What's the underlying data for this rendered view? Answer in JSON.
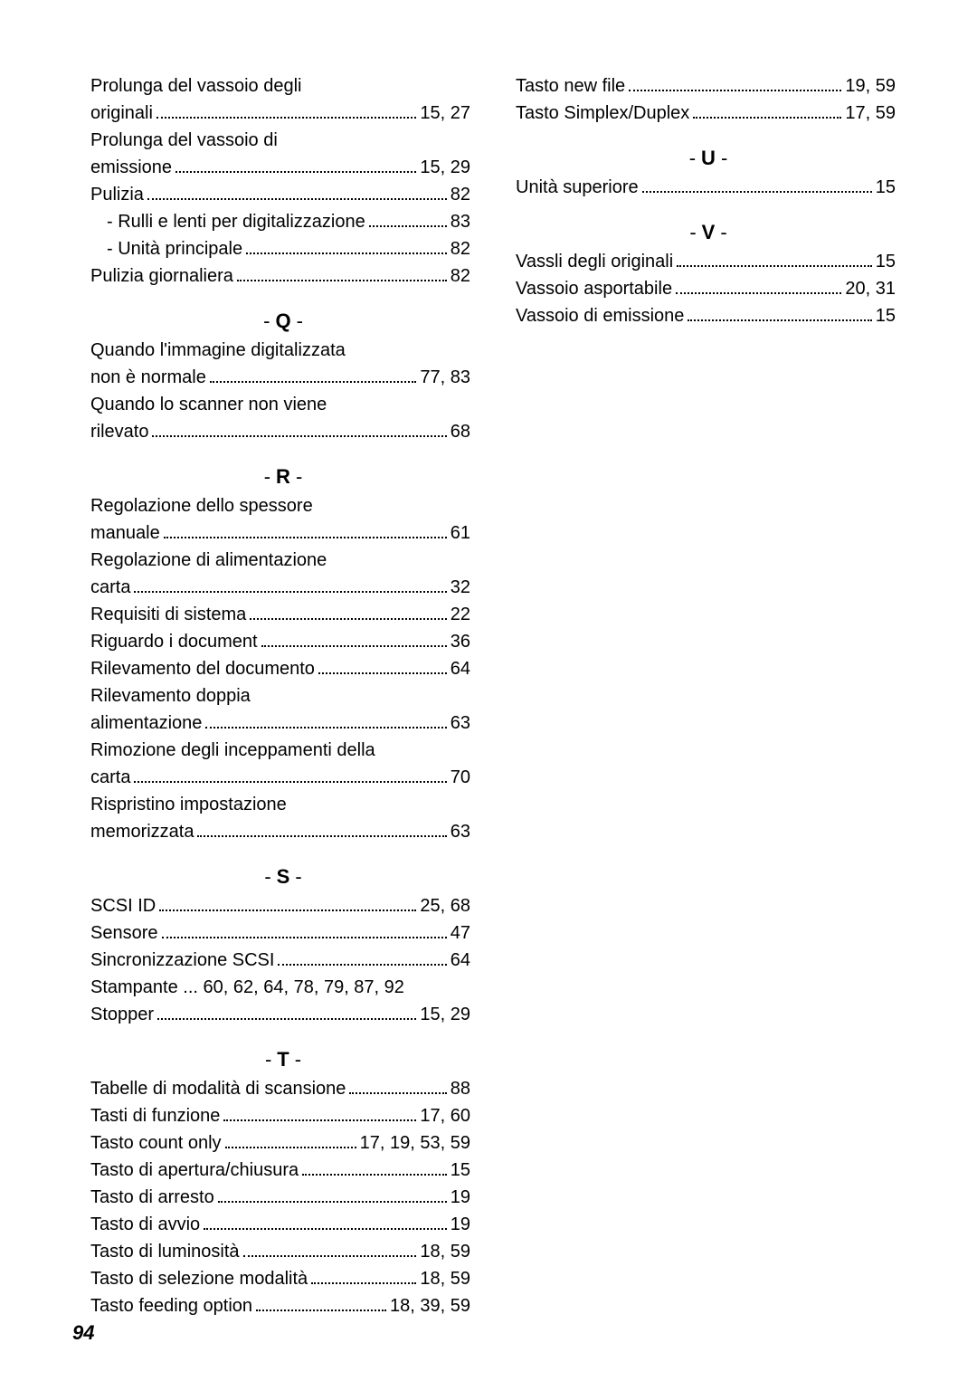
{
  "pageNumber": "94",
  "leftColumn": {
    "initialEntries": [
      {
        "label": "Prolunga del vassoio degli",
        "continuation": true
      },
      {
        "label": "originali",
        "page": "15, 27"
      },
      {
        "label": "Prolunga del vassoio di",
        "continuation": true
      },
      {
        "label": "emissione",
        "page": "15, 29"
      },
      {
        "label": "Pulizia",
        "page": "82"
      },
      {
        "label": "- Rulli e lenti per digitalizzazione",
        "page": "83",
        "indent": true,
        "shortDots": true
      },
      {
        "label": "- Unità principale",
        "page": "82",
        "indent": true
      },
      {
        "label": "Pulizia giornaliera",
        "page": "82"
      }
    ],
    "sections": [
      {
        "letter": "Q",
        "entries": [
          {
            "label": "Quando l'immagine digitalizzata",
            "continuation": true
          },
          {
            "label": "non è normale",
            "page": "77, 83"
          },
          {
            "label": "Quando lo scanner non viene",
            "continuation": true
          },
          {
            "label": "rilevato",
            "page": "68"
          }
        ]
      },
      {
        "letter": "R",
        "entries": [
          {
            "label": "Regolazione dello spessore",
            "continuation": true
          },
          {
            "label": "manuale",
            "page": "61"
          },
          {
            "label": "Regolazione di alimentazione",
            "continuation": true
          },
          {
            "label": "carta",
            "page": "32"
          },
          {
            "label": "Requisiti di sistema",
            "page": "22"
          },
          {
            "label": "Riguardo i document",
            "page": "36"
          },
          {
            "label": "Rilevamento del documento",
            "page": "64"
          },
          {
            "label": "Rilevamento doppia",
            "continuation": true
          },
          {
            "label": "alimentazione",
            "page": "63"
          },
          {
            "label": "Rimozione degli inceppamenti della",
            "continuation": true
          },
          {
            "label": "carta",
            "page": "70"
          },
          {
            "label": "Rispristino impostazione",
            "continuation": true
          },
          {
            "label": "memorizzata",
            "page": "63"
          }
        ]
      },
      {
        "letter": "S",
        "entries": [
          {
            "label": "SCSI ID",
            "page": "25, 68"
          },
          {
            "label": "Sensore",
            "page": "47"
          },
          {
            "label": "Sincronizzazione SCSI",
            "page": "64"
          },
          {
            "label": "Stampante ... 60, 62, 64, 78, 79, 87, 92",
            "noDots": true
          },
          {
            "label": "Stopper",
            "page": "15, 29"
          }
        ]
      },
      {
        "letter": "T",
        "entries": [
          {
            "label": "Tabelle di modalità di scansione",
            "page": "88"
          },
          {
            "label": "Tasti di funzione",
            "page": "17, 60"
          },
          {
            "label": "Tasto count only",
            "page": "17, 19, 53, 59"
          },
          {
            "label": "Tasto di apertura/chiusura",
            "page": "15"
          },
          {
            "label": "Tasto di arresto",
            "page": "19"
          },
          {
            "label": "Tasto di avvio",
            "page": "19"
          },
          {
            "label": "Tasto di luminosità",
            "page": "18, 59"
          },
          {
            "label": "Tasto di selezione modalità",
            "page": "18, 59"
          },
          {
            "label": "Tasto feeding option",
            "page": "18, 39, 59"
          }
        ]
      }
    ]
  },
  "rightColumn": {
    "initialEntries": [
      {
        "label": "Tasto new file",
        "page": "19, 59"
      },
      {
        "label": "Tasto Simplex/Duplex",
        "page": "17, 59"
      }
    ],
    "sections": [
      {
        "letter": "U",
        "entries": [
          {
            "label": "Unità superiore",
            "page": "15"
          }
        ]
      },
      {
        "letter": "V",
        "entries": [
          {
            "label": "Vassli degli originali",
            "page": "15"
          },
          {
            "label": "Vassoio asportabile",
            "page": "20, 31"
          },
          {
            "label": "Vassoio di emissione",
            "page": "15"
          }
        ]
      }
    ]
  }
}
